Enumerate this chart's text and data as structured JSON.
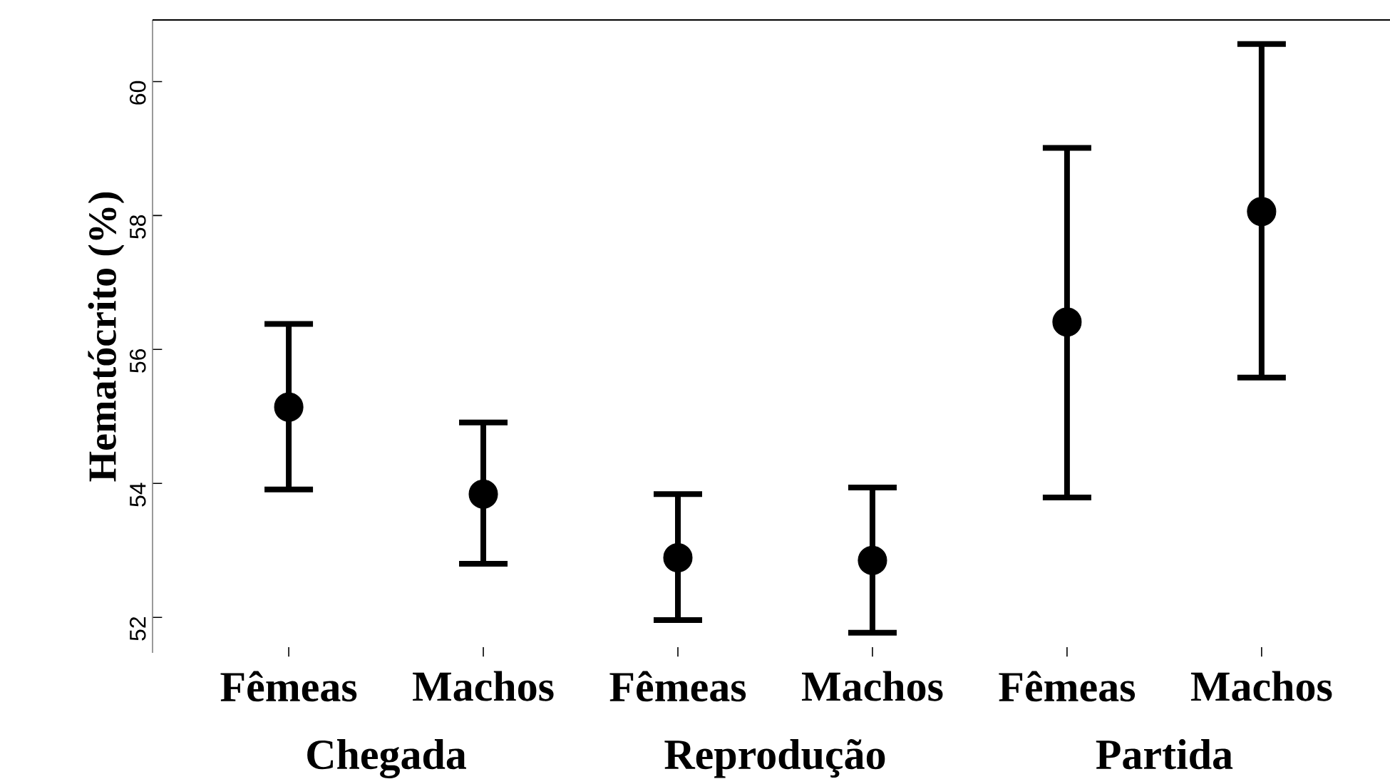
{
  "chart_data": {
    "type": "scatter",
    "ylabel": "Hematócrito (%)",
    "categories": [
      "Fêmeas",
      "Machos",
      "Fêmeas",
      "Machos",
      "Fêmeas",
      "Machos"
    ],
    "values": [
      55.14,
      53.84,
      52.89,
      52.85,
      56.41,
      58.06
    ],
    "errors": [
      [
        53.91,
        56.38
      ],
      [
        52.8,
        54.91
      ],
      [
        51.96,
        53.84
      ],
      [
        51.77,
        53.94
      ],
      [
        53.79,
        59.01
      ],
      [
        55.58,
        60.56
      ]
    ],
    "color": "#000000",
    "marker": "circle",
    "ylim": [
      51.47,
      60.92
    ],
    "yticks": [
      52,
      54,
      56,
      58,
      60
    ],
    "annotations": [
      "Chegada",
      "Reprodução",
      "Partida"
    ]
  }
}
